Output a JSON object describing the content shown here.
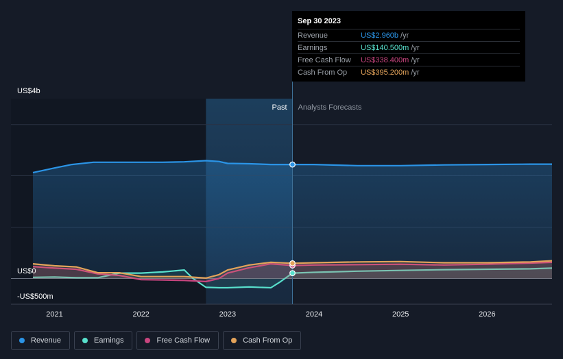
{
  "chart_data": {
    "type": "area",
    "title": "",
    "y_axis": {
      "unit_label_top": "US$4b",
      "unit_label_zero": "US$0",
      "unit_label_bottom": "-US$500m",
      "ylim": [
        -0.5,
        4
      ]
    },
    "x_axis": {
      "ticks": [
        "2021",
        "2022",
        "2023",
        "2024",
        "2025",
        "2026"
      ],
      "xlim": [
        2020.75,
        2026.75
      ]
    },
    "past_label": "Past",
    "forecast_label": "Analysts Forecasts",
    "past_start": 2022.75,
    "forecast_start": 2023.75,
    "series": [
      {
        "name": "Revenue",
        "color": "#2b94e6",
        "x": [
          2020.75,
          2021.0,
          2021.2,
          2021.45,
          2021.75,
          2022.0,
          2022.25,
          2022.5,
          2022.75,
          2022.9,
          2023.0,
          2023.25,
          2023.5,
          2023.75,
          2024.0,
          2024.5,
          2025.0,
          2025.5,
          2026.0,
          2026.5,
          2026.75
        ],
        "values": [
          2.75,
          2.87,
          2.96,
          3.02,
          3.02,
          3.02,
          3.02,
          3.03,
          3.06,
          3.04,
          2.99,
          2.98,
          2.96,
          2.96,
          2.96,
          2.93,
          2.93,
          2.95,
          2.96,
          2.97,
          2.97
        ]
      },
      {
        "name": "Earnings",
        "color": "#58e0cc",
        "x": [
          2020.75,
          2021.0,
          2021.25,
          2021.5,
          2021.75,
          2022.0,
          2022.25,
          2022.5,
          2022.6,
          2022.75,
          2022.9,
          2023.0,
          2023.25,
          2023.5,
          2023.6,
          2023.75,
          2024.0,
          2024.5,
          2025.0,
          2025.5,
          2026.0,
          2026.5,
          2026.75
        ],
        "values": [
          0.03,
          0.04,
          0.02,
          0.02,
          0.14,
          0.14,
          0.17,
          0.22,
          0.0,
          -0.23,
          -0.24,
          -0.24,
          -0.22,
          -0.24,
          -0.1,
          0.1405,
          0.16,
          0.19,
          0.21,
          0.23,
          0.24,
          0.25,
          0.27
        ]
      },
      {
        "name": "Free Cash Flow",
        "color": "#c9457f",
        "x": [
          2020.75,
          2021.0,
          2021.25,
          2021.5,
          2021.75,
          2022.0,
          2022.25,
          2022.5,
          2022.75,
          2022.9,
          2023.0,
          2023.25,
          2023.5,
          2023.75,
          2024.0,
          2024.5,
          2025.0,
          2025.5,
          2026.0,
          2026.5,
          2026.75
        ],
        "values": [
          0.31,
          0.27,
          0.24,
          0.12,
          0.08,
          -0.03,
          -0.04,
          -0.05,
          -0.08,
          0.0,
          0.14,
          0.28,
          0.38,
          0.3384,
          0.35,
          0.36,
          0.37,
          0.35,
          0.37,
          0.4,
          0.42
        ]
      },
      {
        "name": "Cash From Op",
        "color": "#e3a35a",
        "x": [
          2020.75,
          2021.0,
          2021.25,
          2021.5,
          2021.75,
          2022.0,
          2022.25,
          2022.5,
          2022.75,
          2022.9,
          2023.0,
          2023.25,
          2023.5,
          2023.75,
          2024.0,
          2024.5,
          2025.0,
          2025.5,
          2026.0,
          2026.5,
          2026.75
        ],
        "values": [
          0.38,
          0.33,
          0.3,
          0.15,
          0.15,
          0.05,
          0.05,
          0.05,
          0.01,
          0.1,
          0.22,
          0.35,
          0.42,
          0.3952,
          0.41,
          0.43,
          0.44,
          0.41,
          0.41,
          0.43,
          0.46
        ]
      }
    ]
  },
  "tooltip": {
    "date": "Sep 30 2023",
    "rows": [
      {
        "label": "Revenue",
        "value": "US$2.960b",
        "unit": "/yr",
        "color": "#2b94e6"
      },
      {
        "label": "Earnings",
        "value": "US$140.500m",
        "unit": "/yr",
        "color": "#58e0cc"
      },
      {
        "label": "Free Cash Flow",
        "value": "US$338.400m",
        "unit": "/yr",
        "color": "#c9457f"
      },
      {
        "label": "Cash From Op",
        "value": "US$395.200m",
        "unit": "/yr",
        "color": "#e3a35a"
      }
    ]
  },
  "legend": [
    {
      "label": "Revenue",
      "color": "#2b94e6"
    },
    {
      "label": "Earnings",
      "color": "#58e0cc"
    },
    {
      "label": "Free Cash Flow",
      "color": "#c9457f"
    },
    {
      "label": "Cash From Op",
      "color": "#e3a35a"
    }
  ]
}
